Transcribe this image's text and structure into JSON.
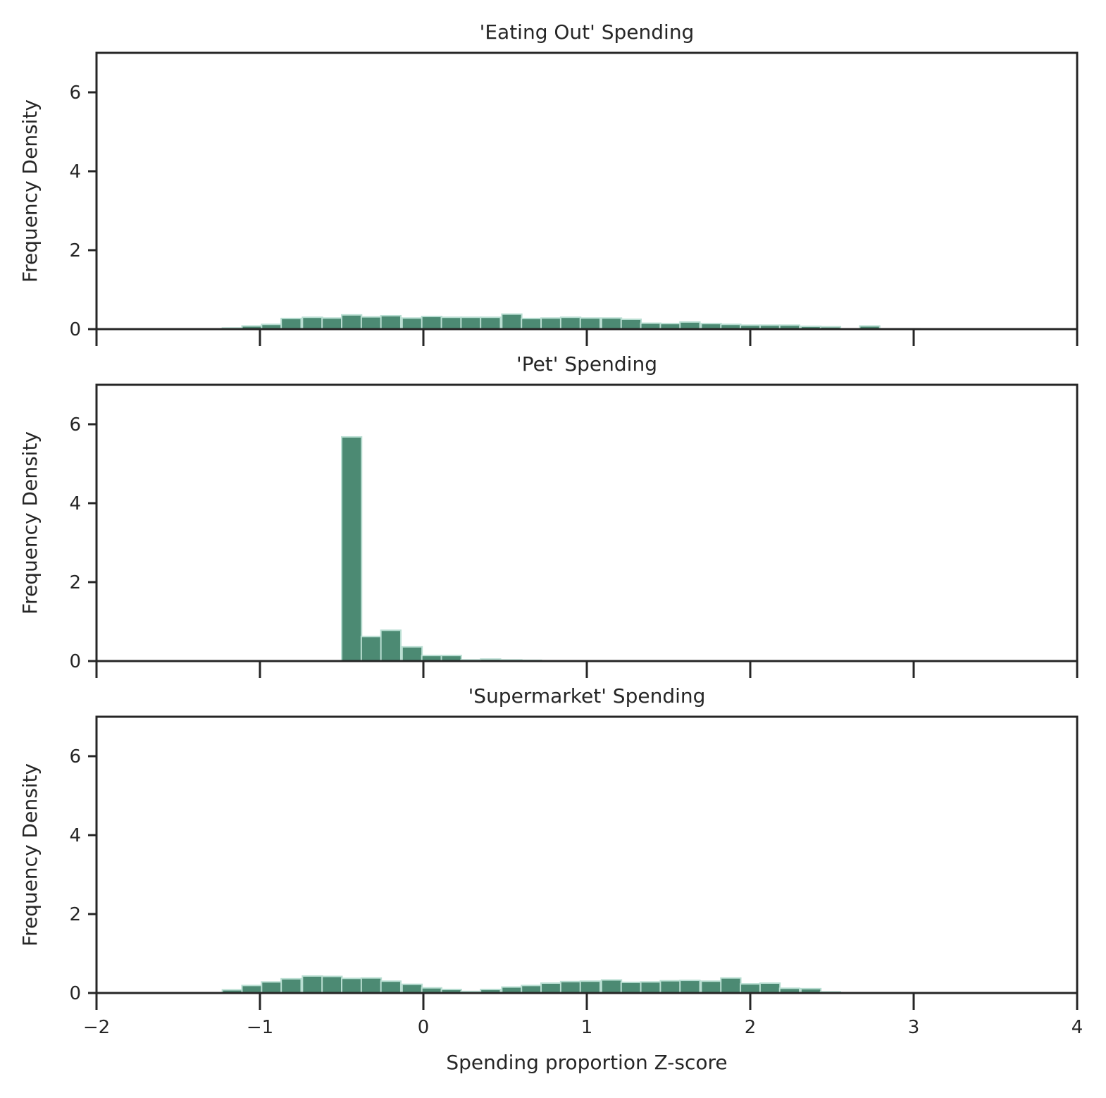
{
  "figure": {
    "bar_color": "#4c8a73",
    "edge_color": "#b9ded2",
    "axis_color": "#262626"
  },
  "chart_data": [
    {
      "type": "bar",
      "title": "'Eating Out' Spending",
      "ylabel": "Frequency Density",
      "xlabel": "",
      "xlim": [
        -2,
        4
      ],
      "ylim": [
        0,
        7
      ],
      "xticks": [
        -2,
        -1,
        0,
        1,
        2,
        3,
        4
      ],
      "xtick_labels": [
        "",
        "",
        "",
        "",
        "",
        "",
        ""
      ],
      "yticks": [
        0,
        2,
        4,
        6
      ],
      "ytick_labels": [
        "0",
        "2",
        "4",
        "6"
      ],
      "grid": false,
      "bin_width": 0.122,
      "bars": [
        {
          "x": -1.23,
          "y": 0.03
        },
        {
          "x": -1.11,
          "y": 0.08
        },
        {
          "x": -0.99,
          "y": 0.12
        },
        {
          "x": -0.87,
          "y": 0.27
        },
        {
          "x": -0.74,
          "y": 0.3
        },
        {
          "x": -0.62,
          "y": 0.28
        },
        {
          "x": -0.5,
          "y": 0.36
        },
        {
          "x": -0.38,
          "y": 0.31
        },
        {
          "x": -0.26,
          "y": 0.34
        },
        {
          "x": -0.13,
          "y": 0.28
        },
        {
          "x": -0.01,
          "y": 0.32
        },
        {
          "x": 0.11,
          "y": 0.3
        },
        {
          "x": 0.23,
          "y": 0.3
        },
        {
          "x": 0.35,
          "y": 0.3
        },
        {
          "x": 0.48,
          "y": 0.38
        },
        {
          "x": 0.6,
          "y": 0.27
        },
        {
          "x": 0.72,
          "y": 0.28
        },
        {
          "x": 0.84,
          "y": 0.3
        },
        {
          "x": 0.96,
          "y": 0.28
        },
        {
          "x": 1.09,
          "y": 0.28
        },
        {
          "x": 1.21,
          "y": 0.25
        },
        {
          "x": 1.33,
          "y": 0.15
        },
        {
          "x": 1.45,
          "y": 0.14
        },
        {
          "x": 1.57,
          "y": 0.18
        },
        {
          "x": 1.7,
          "y": 0.14
        },
        {
          "x": 1.82,
          "y": 0.12
        },
        {
          "x": 1.94,
          "y": 0.1
        },
        {
          "x": 2.06,
          "y": 0.1
        },
        {
          "x": 2.18,
          "y": 0.1
        },
        {
          "x": 2.31,
          "y": 0.07
        },
        {
          "x": 2.43,
          "y": 0.06
        },
        {
          "x": 2.55,
          "y": 0.0
        },
        {
          "x": 2.67,
          "y": 0.08
        },
        {
          "x": 2.79,
          "y": 0.01
        },
        {
          "x": 2.92,
          "y": 0.01
        }
      ]
    },
    {
      "type": "bar",
      "title": "'Pet' Spending",
      "ylabel": "Frequency Density",
      "xlabel": "",
      "xlim": [
        -2,
        4
      ],
      "ylim": [
        0,
        7
      ],
      "xticks": [
        -2,
        -1,
        0,
        1,
        2,
        3,
        4
      ],
      "xtick_labels": [
        "",
        "",
        "",
        "",
        "",
        "",
        ""
      ],
      "yticks": [
        0,
        2,
        4,
        6
      ],
      "ytick_labels": [
        "0",
        "2",
        "4",
        "6"
      ],
      "grid": false,
      "bin_width": 0.122,
      "bars": [
        {
          "x": -0.5,
          "y": 5.68
        },
        {
          "x": -0.38,
          "y": 0.62
        },
        {
          "x": -0.26,
          "y": 0.78
        },
        {
          "x": -0.13,
          "y": 0.36
        },
        {
          "x": -0.01,
          "y": 0.14
        },
        {
          "x": 0.11,
          "y": 0.14
        },
        {
          "x": 0.23,
          "y": 0.03
        },
        {
          "x": 0.35,
          "y": 0.05
        },
        {
          "x": 0.48,
          "y": 0.03
        },
        {
          "x": 0.6,
          "y": 0.02
        }
      ]
    },
    {
      "type": "bar",
      "title": "'Supermarket' Spending",
      "ylabel": "Frequency Density",
      "xlabel": "Spending proportion Z-score",
      "xlim": [
        -2,
        4
      ],
      "ylim": [
        0,
        7
      ],
      "xticks": [
        -2,
        -1,
        0,
        1,
        2,
        3,
        4
      ],
      "xtick_labels": [
        "−2",
        "−1",
        "0",
        "1",
        "2",
        "3",
        "4"
      ],
      "yticks": [
        0,
        2,
        4,
        6
      ],
      "ytick_labels": [
        "0",
        "2",
        "4",
        "6"
      ],
      "grid": false,
      "bin_width": 0.122,
      "bars": [
        {
          "x": -1.23,
          "y": 0.08
        },
        {
          "x": -1.11,
          "y": 0.19
        },
        {
          "x": -0.99,
          "y": 0.28
        },
        {
          "x": -0.87,
          "y": 0.36
        },
        {
          "x": -0.74,
          "y": 0.43
        },
        {
          "x": -0.62,
          "y": 0.42
        },
        {
          "x": -0.5,
          "y": 0.37
        },
        {
          "x": -0.38,
          "y": 0.38
        },
        {
          "x": -0.26,
          "y": 0.3
        },
        {
          "x": -0.13,
          "y": 0.22
        },
        {
          "x": -0.01,
          "y": 0.13
        },
        {
          "x": 0.11,
          "y": 0.09
        },
        {
          "x": 0.23,
          "y": 0.04
        },
        {
          "x": 0.35,
          "y": 0.09
        },
        {
          "x": 0.48,
          "y": 0.15
        },
        {
          "x": 0.6,
          "y": 0.19
        },
        {
          "x": 0.72,
          "y": 0.25
        },
        {
          "x": 0.84,
          "y": 0.29
        },
        {
          "x": 0.96,
          "y": 0.3
        },
        {
          "x": 1.09,
          "y": 0.33
        },
        {
          "x": 1.21,
          "y": 0.27
        },
        {
          "x": 1.33,
          "y": 0.28
        },
        {
          "x": 1.45,
          "y": 0.31
        },
        {
          "x": 1.57,
          "y": 0.32
        },
        {
          "x": 1.7,
          "y": 0.3
        },
        {
          "x": 1.82,
          "y": 0.38
        },
        {
          "x": 1.94,
          "y": 0.23
        },
        {
          "x": 2.06,
          "y": 0.25
        },
        {
          "x": 2.18,
          "y": 0.12
        },
        {
          "x": 2.31,
          "y": 0.11
        },
        {
          "x": 2.43,
          "y": 0.03
        }
      ]
    }
  ]
}
